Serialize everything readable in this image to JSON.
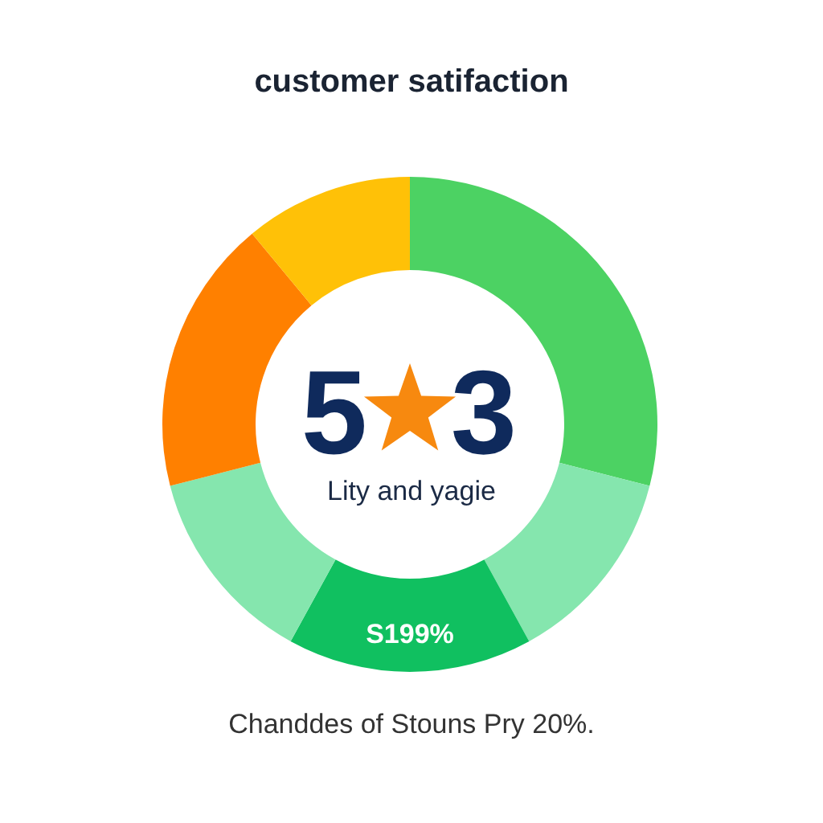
{
  "chart_data": {
    "type": "donut",
    "title": "customer satifaction",
    "categories": [
      null,
      null,
      "S199%",
      null,
      null,
      null
    ],
    "values": [
      29,
      13,
      16,
      13,
      18,
      11
    ],
    "colors": [
      "#4cd263",
      "#85e6ae",
      "#10c060",
      "#85e6ae",
      "#ff8000",
      "#ffc107"
    ],
    "annotations": [
      "5",
      "3",
      "Lity and yagie",
      "Chanddes of Stouns Pry 20%."
    ]
  }
}
